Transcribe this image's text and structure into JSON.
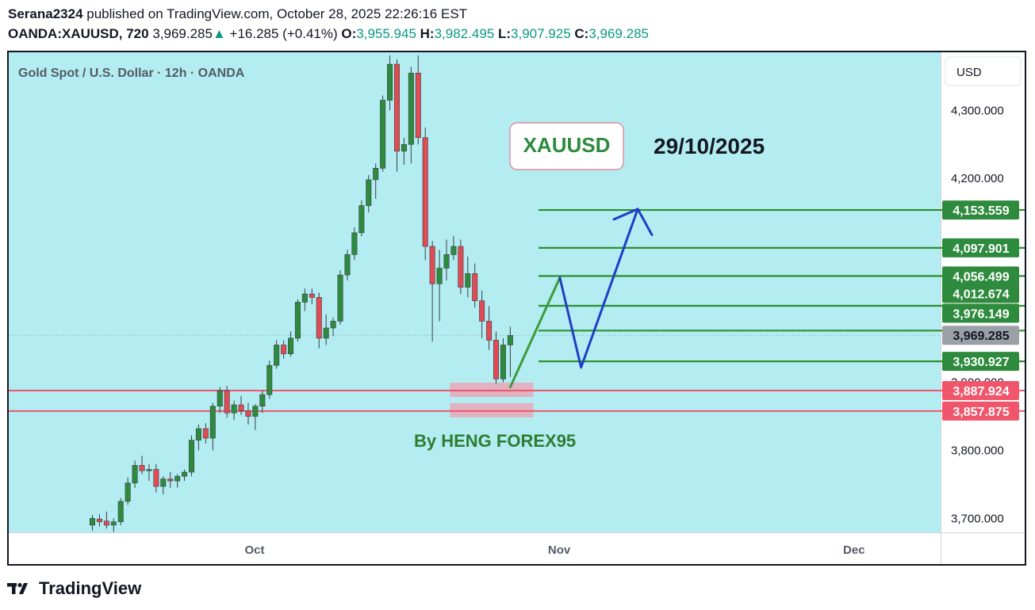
{
  "header": {
    "author": "Serana2324",
    "published_text": "published on TradingView.com, October 28, 2025 22:26:16 EST",
    "symbol": "OANDA:XAUUSD, 720",
    "last": "3,969.285",
    "change_arrow": "▲",
    "change": "+16.285 (+0.41%)",
    "o_label": "O:",
    "o_value": "3,955.945",
    "h_label": "H:",
    "h_value": "3,982.495",
    "l_label": "L:",
    "l_value": "3,907.925",
    "c_label": "C:",
    "c_value": "3,969.285"
  },
  "chart_data": {
    "type": "candlestick",
    "title": "Gold Spot / U.S. Dollar · 12h · OANDA",
    "currency_button": "USD",
    "y_ticks": [
      {
        "value": 4300,
        "label": "4,300.000"
      },
      {
        "value": 4200,
        "label": "4,200.000"
      },
      {
        "value": 3800,
        "label": "3,800.000"
      },
      {
        "value": 3700,
        "label": "3,700.000"
      }
    ],
    "hidden_tick": {
      "value": 3900,
      "label": "3,900.000"
    },
    "x_ticks": [
      {
        "label": "Oct",
        "date": "2025-10-01"
      },
      {
        "label": "Nov",
        "date": "2025-11-01"
      },
      {
        "label": "Dec",
        "date": "2025-12-01"
      }
    ],
    "candles": [
      [
        3690,
        3705,
        3682,
        3700
      ],
      [
        3699,
        3706,
        3688,
        3695
      ],
      [
        3696,
        3710,
        3685,
        3690
      ],
      [
        3690,
        3700,
        3680,
        3695
      ],
      [
        3695,
        3730,
        3690,
        3725
      ],
      [
        3725,
        3760,
        3720,
        3752
      ],
      [
        3752,
        3785,
        3745,
        3778
      ],
      [
        3778,
        3792,
        3765,
        3770
      ],
      [
        3770,
        3780,
        3755,
        3772
      ],
      [
        3772,
        3780,
        3738,
        3747
      ],
      [
        3747,
        3762,
        3735,
        3758
      ],
      [
        3758,
        3768,
        3745,
        3755
      ],
      [
        3755,
        3765,
        3745,
        3762
      ],
      [
        3762,
        3772,
        3755,
        3768
      ],
      [
        3768,
        3822,
        3762,
        3815
      ],
      [
        3815,
        3838,
        3800,
        3832
      ],
      [
        3832,
        3840,
        3810,
        3818
      ],
      [
        3818,
        3870,
        3800,
        3865
      ],
      [
        3865,
        3893,
        3855,
        3888
      ],
      [
        3888,
        3895,
        3848,
        3855
      ],
      [
        3855,
        3873,
        3845,
        3867
      ],
      [
        3867,
        3880,
        3852,
        3858
      ],
      [
        3858,
        3870,
        3838,
        3850
      ],
      [
        3850,
        3868,
        3830,
        3865
      ],
      [
        3865,
        3888,
        3855,
        3882
      ],
      [
        3882,
        3932,
        3876,
        3925
      ],
      [
        3925,
        3962,
        3920,
        3955
      ],
      [
        3955,
        3962,
        3935,
        3942
      ],
      [
        3942,
        3975,
        3938,
        3965
      ],
      [
        3965,
        4022,
        3960,
        4018
      ],
      [
        4018,
        4038,
        4005,
        4030
      ],
      [
        4030,
        4038,
        4015,
        4025
      ],
      [
        4025,
        4032,
        3950,
        3965
      ],
      [
        3965,
        4000,
        3955,
        3980
      ],
      [
        3980,
        3995,
        3968,
        3990
      ],
      [
        3990,
        4065,
        3985,
        4058
      ],
      [
        4058,
        4095,
        4050,
        4088
      ],
      [
        4088,
        4128,
        4080,
        4120
      ],
      [
        4120,
        4168,
        4115,
        4160
      ],
      [
        4160,
        4205,
        4150,
        4198
      ],
      [
        4198,
        4222,
        4170,
        4215
      ],
      [
        4215,
        4322,
        4210,
        4315
      ],
      [
        4315,
        4381,
        4300,
        4368
      ],
      [
        4368,
        4375,
        4210,
        4240
      ],
      [
        4240,
        4260,
        4220,
        4250
      ],
      [
        4250,
        4364,
        4222,
        4355
      ],
      [
        4355,
        4381,
        4250,
        4260
      ],
      [
        4260,
        4275,
        4080,
        4100
      ],
      [
        4100,
        4108,
        3960,
        4045
      ],
      [
        4045,
        4095,
        3990,
        4068
      ],
      [
        4068,
        4110,
        4050,
        4088
      ],
      [
        4088,
        4115,
        4080,
        4100
      ],
      [
        4100,
        4110,
        4030,
        4040
      ],
      [
        4040,
        4085,
        4025,
        4060
      ],
      [
        4060,
        4075,
        4010,
        4020
      ],
      [
        4020,
        4035,
        3965,
        3990
      ],
      [
        3990,
        4012,
        3948,
        3962
      ],
      [
        3962,
        3975,
        3898,
        3905
      ],
      [
        3905,
        3965,
        3900,
        3955
      ],
      [
        3955,
        3982,
        3908,
        3969
      ]
    ],
    "last_price_line": 3969.285,
    "target_levels": [
      {
        "value": 4153.559,
        "label": "4,153.559"
      },
      {
        "value": 4097.901,
        "label": "4,097.901"
      },
      {
        "value": 4056.499,
        "label": "4,056.499"
      },
      {
        "value": 4012.674,
        "label": "4,012.674"
      },
      {
        "value": 3976.149,
        "label": "3,976.149"
      },
      {
        "value": 3930.927,
        "label": "3,930.927"
      }
    ],
    "last_price_label": "3,969.285",
    "support_levels": [
      {
        "value": 3887.924,
        "label": "3,887.924"
      },
      {
        "value": 3857.875,
        "label": "3,857.875"
      }
    ],
    "projection_path": [
      {
        "i": 59,
        "v": 3893
      },
      {
        "i": 66,
        "v": 4054
      },
      {
        "i": 69,
        "v": 3922
      },
      {
        "i": 77,
        "v": 4155
      },
      {
        "i": 79,
        "v": 4117
      }
    ],
    "annotations": {
      "symbol_box": "XAUUSD",
      "date": "29/10/2025",
      "author": "By HENG FOREX95"
    }
  },
  "colors": {
    "background": "#b3ecf1",
    "up": "#2e8b3e",
    "down": "#e04b54",
    "green_line": "#2f8f2f",
    "red_line": "#f0566b",
    "zone": "#e9a8b8",
    "projection_up": "#3f9a3a",
    "projection_blue": "#1f3fc4",
    "label_green": "#2e8b3e",
    "label_red": "#f0566b",
    "label_gray": "#9aa0a6"
  },
  "footer": {
    "brand": "TradingView",
    "logo_icon": "tradingview-logo-icon"
  }
}
